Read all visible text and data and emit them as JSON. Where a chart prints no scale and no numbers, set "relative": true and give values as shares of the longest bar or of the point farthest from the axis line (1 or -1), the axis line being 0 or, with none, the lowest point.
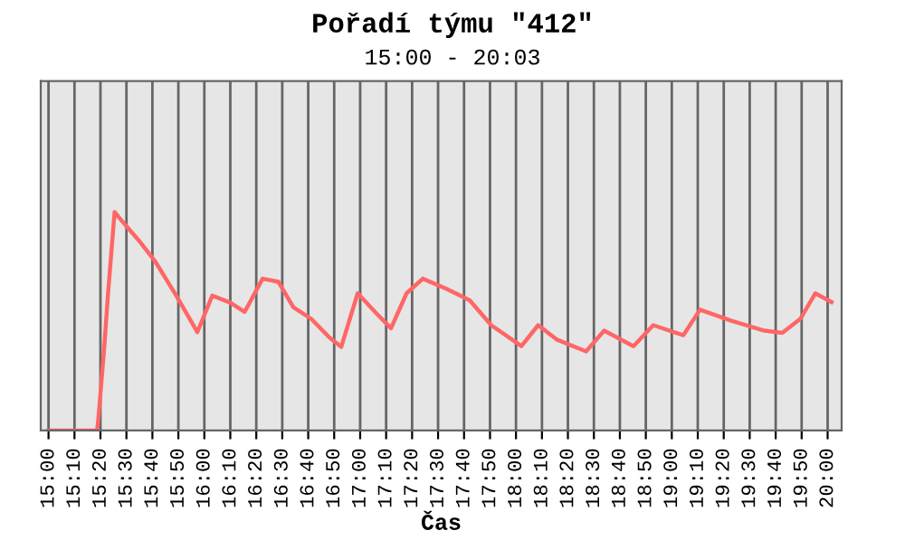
{
  "chart_data": {
    "type": "line",
    "title": "Pořadí týmu \"412\"",
    "subtitle": "15:00 - 20:03",
    "xlabel": "Čas",
    "relative": true,
    "grid": "x",
    "xlim": [
      14.95,
      20.09
    ],
    "xticks": [
      {
        "value": 15.0,
        "label": "15:00"
      },
      {
        "value": 15.1667,
        "label": "15:10"
      },
      {
        "value": 15.3333,
        "label": "15:20"
      },
      {
        "value": 15.5,
        "label": "15:30"
      },
      {
        "value": 15.6667,
        "label": "15:40"
      },
      {
        "value": 15.8333,
        "label": "15:50"
      },
      {
        "value": 16.0,
        "label": "16:00"
      },
      {
        "value": 16.1667,
        "label": "16:10"
      },
      {
        "value": 16.3333,
        "label": "16:20"
      },
      {
        "value": 16.5,
        "label": "16:30"
      },
      {
        "value": 16.6667,
        "label": "16:40"
      },
      {
        "value": 16.8333,
        "label": "16:50"
      },
      {
        "value": 17.0,
        "label": "17:00"
      },
      {
        "value": 17.1667,
        "label": "17:10"
      },
      {
        "value": 17.3333,
        "label": "17:20"
      },
      {
        "value": 17.5,
        "label": "17:30"
      },
      {
        "value": 17.6667,
        "label": "17:40"
      },
      {
        "value": 17.8333,
        "label": "17:50"
      },
      {
        "value": 18.0,
        "label": "18:00"
      },
      {
        "value": 18.1667,
        "label": "18:10"
      },
      {
        "value": 18.3333,
        "label": "18:20"
      },
      {
        "value": 18.5,
        "label": "18:30"
      },
      {
        "value": 18.6667,
        "label": "18:40"
      },
      {
        "value": 18.8333,
        "label": "18:50"
      },
      {
        "value": 19.0,
        "label": "19:00"
      },
      {
        "value": 19.1667,
        "label": "19:10"
      },
      {
        "value": 19.3333,
        "label": "19:20"
      },
      {
        "value": 19.5,
        "label": "19:30"
      },
      {
        "value": 19.6667,
        "label": "19:40"
      },
      {
        "value": 19.8333,
        "label": "19:50"
      },
      {
        "value": 20.0,
        "label": "20:00"
      }
    ],
    "series": [
      {
        "color": "#ff6666",
        "x": [
          15.0,
          15.312,
          15.32,
          15.358,
          15.381,
          15.424,
          15.474,
          15.589,
          15.682,
          15.82,
          15.955,
          16.051,
          16.167,
          16.259,
          16.374,
          16.475,
          16.571,
          16.686,
          16.802,
          16.879,
          16.984,
          17.11,
          17.198,
          17.298,
          17.402,
          17.553,
          17.703,
          17.841,
          18.035,
          18.142,
          18.265,
          18.45,
          18.566,
          18.754,
          18.881,
          19.074,
          19.181,
          19.378,
          19.594,
          19.709,
          19.825,
          19.921,
          20.025
        ],
        "values": [
          0,
          0,
          0.053,
          0.383,
          0.617,
          1,
          0.957,
          0.862,
          0.777,
          0.617,
          0.45,
          0.617,
          0.585,
          0.543,
          0.695,
          0.681,
          0.564,
          0.511,
          0.426,
          0.383,
          0.628,
          0.532,
          0.468,
          0.628,
          0.695,
          0.649,
          0.596,
          0.482,
          0.386,
          0.482,
          0.415,
          0.362,
          0.457,
          0.386,
          0.482,
          0.436,
          0.553,
          0.503,
          0.457,
          0.447,
          0.511,
          0.628,
          0.588
        ]
      }
    ]
  }
}
